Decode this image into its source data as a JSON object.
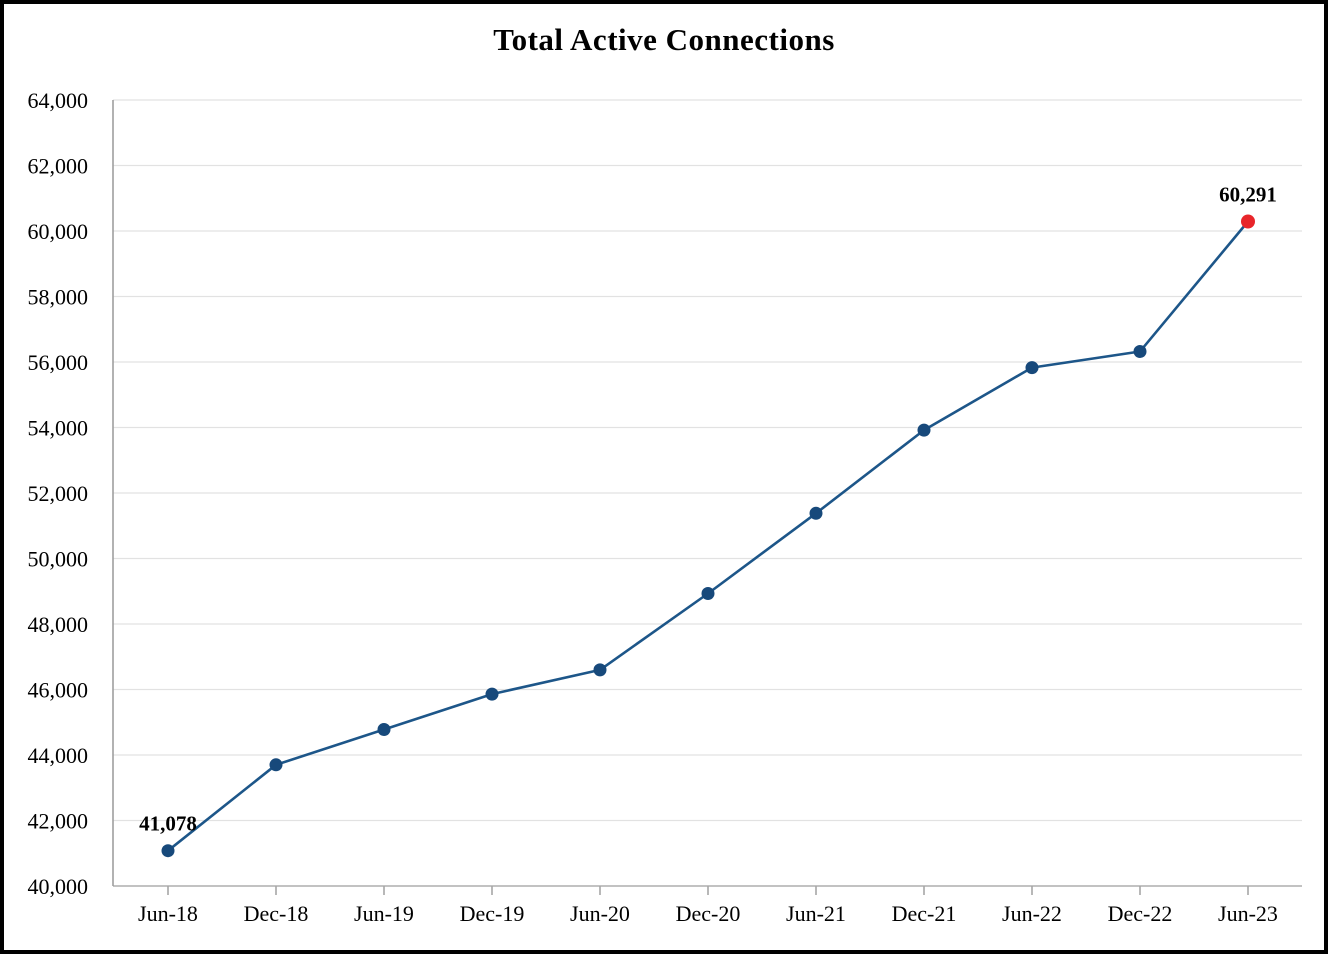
{
  "frame": {
    "background": "#FFFFFF",
    "border_color": "#000000"
  },
  "chart_data": {
    "type": "line",
    "title": "Total Active Connections",
    "categories": [
      "Jun-18",
      "Dec-18",
      "Jun-19",
      "Dec-19",
      "Jun-20",
      "Dec-20",
      "Jun-21",
      "Dec-21",
      "Jun-22",
      "Dec-22",
      "Jun-23"
    ],
    "series": [
      {
        "name": "Total Active Connections",
        "values": [
          41078,
          43700,
          44780,
          45860,
          46600,
          48930,
          51380,
          53920,
          55830,
          56320,
          60291
        ]
      }
    ],
    "xlabel": "",
    "ylabel": "",
    "ylim": [
      40000,
      64000
    ],
    "y_tick_step": 2000,
    "y_tick_labels": [
      "40,000",
      "42,000",
      "44,000",
      "46,000",
      "48,000",
      "50,000",
      "52,000",
      "54,000",
      "56,000",
      "58,000",
      "60,000",
      "62,000",
      "64,000"
    ],
    "grid": true,
    "legend_position": "none",
    "annotations": [
      {
        "index": 0,
        "category": "Jun-18",
        "text": "41,078"
      },
      {
        "index": 10,
        "category": "Jun-23",
        "text": "60,291"
      }
    ],
    "colors": {
      "line": "#1D5689",
      "marker": "#17497B",
      "last_marker": "#E8252A",
      "gridline": "#E2E2E2",
      "axis": "#9E9E9E",
      "tick": "#A6A6A6",
      "text": "#000000"
    }
  }
}
